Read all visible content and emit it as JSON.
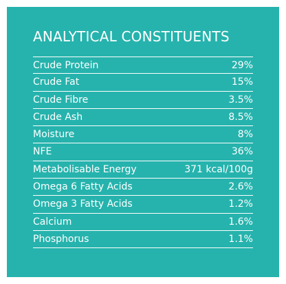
{
  "colors": {
    "panel_background": "#26b3ad",
    "text": "#ffffff",
    "page_background": "#ffffff"
  },
  "heading": "ANALYTICAL CONSTITUENTS",
  "rows": [
    {
      "label": "Crude Protein",
      "value": "29%"
    },
    {
      "label": "Crude Fat",
      "value": "15%"
    },
    {
      "label": "Crude Fibre",
      "value": "3.5%"
    },
    {
      "label": "Crude Ash",
      "value": "8.5%"
    },
    {
      "label": "Moisture",
      "value": "8%"
    },
    {
      "label": "NFE",
      "value": "36%"
    },
    {
      "label": "Metabolisable Energy",
      "value": "371 kcal/100g"
    },
    {
      "label": "Omega 6 Fatty Acids",
      "value": "2.6%"
    },
    {
      "label": "Omega 3 Fatty Acids",
      "value": "1.2%"
    },
    {
      "label": "Calcium",
      "value": "1.6%"
    },
    {
      "label": "Phosphorus",
      "value": "1.1%"
    }
  ]
}
